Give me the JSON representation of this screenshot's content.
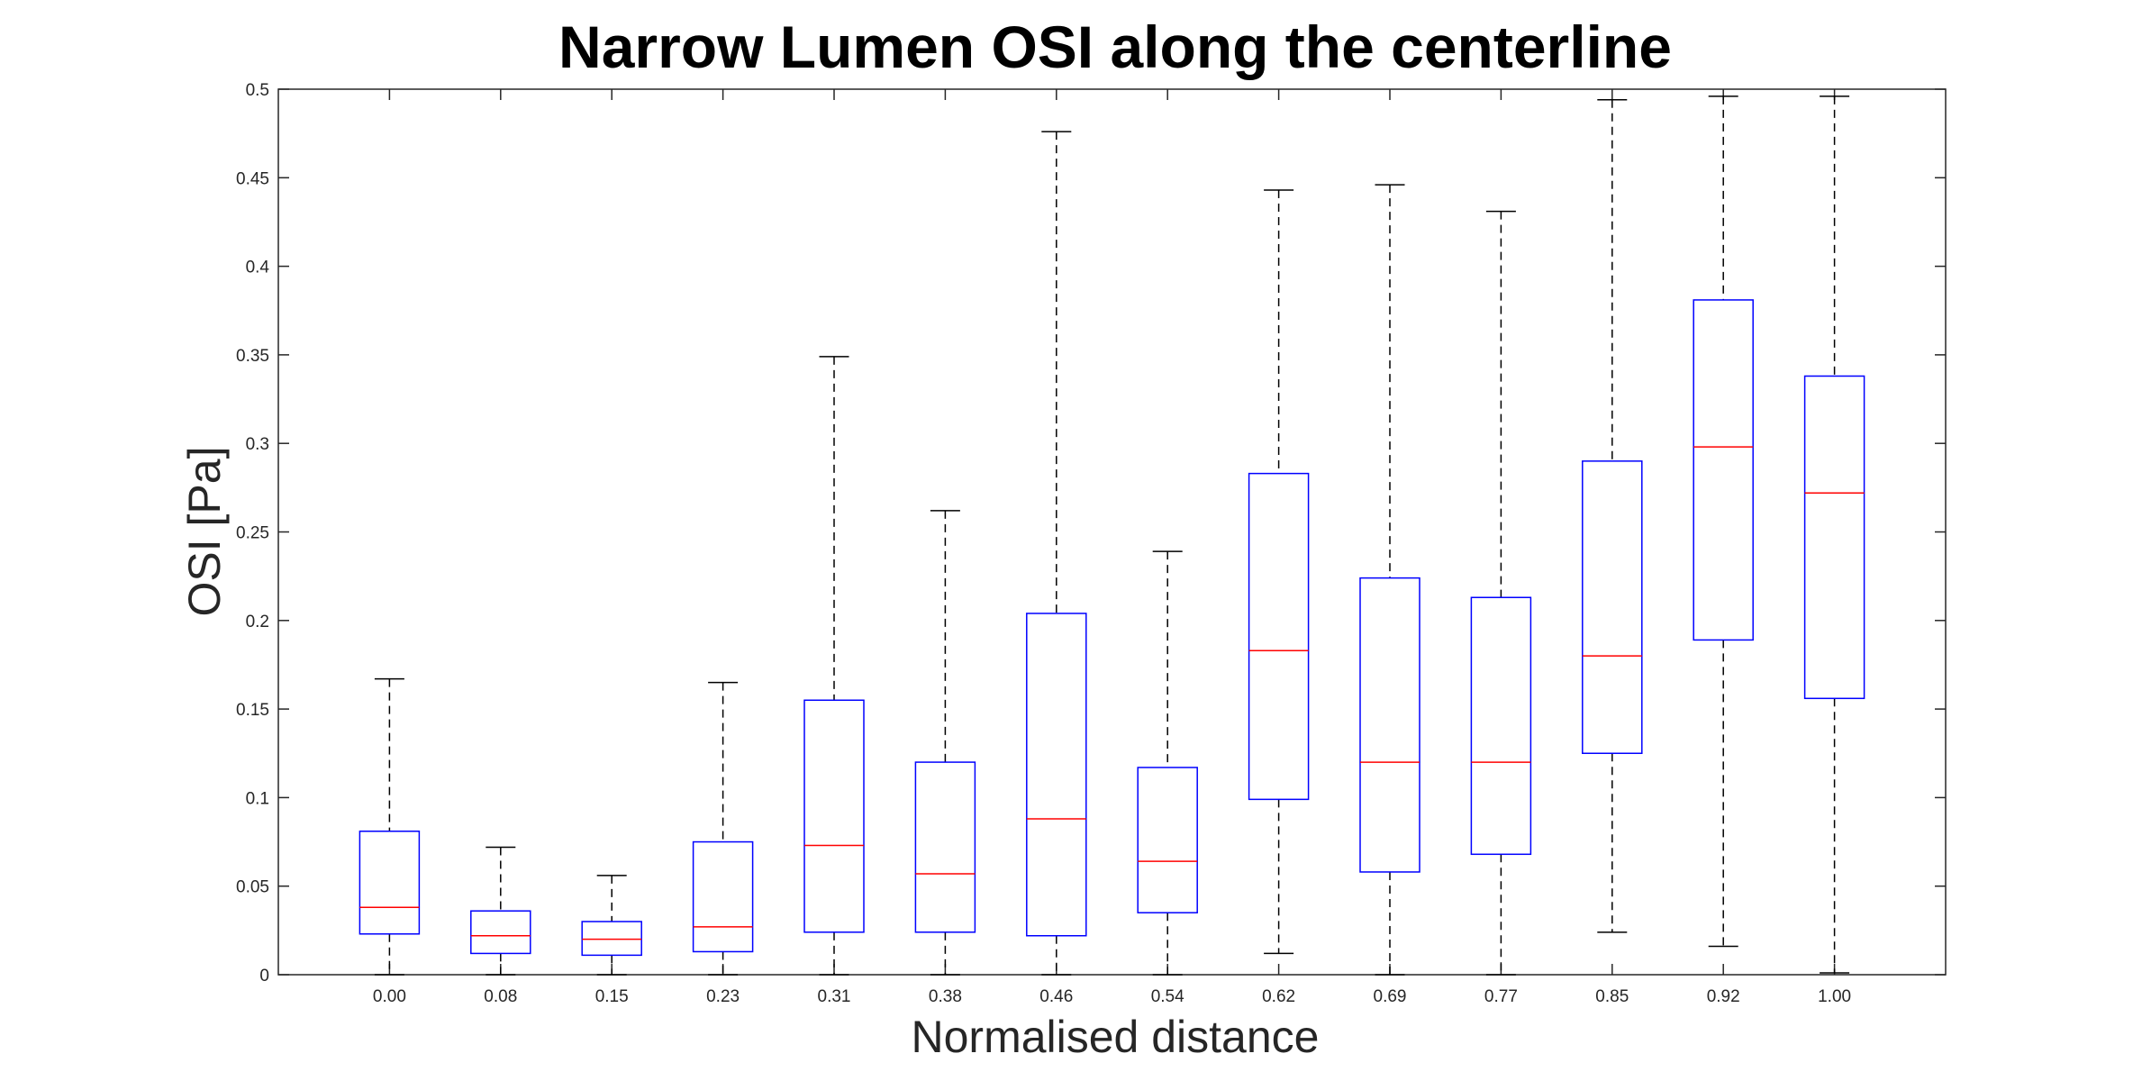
{
  "chart_data": {
    "type": "boxplot",
    "title": "Narrow Lumen OSI along the centerline",
    "xlabel": "Normalised distance",
    "ylabel": "OSI [Pa]",
    "ylim": [
      0,
      0.5
    ],
    "yticks": [
      "0",
      "0.05",
      "0.1",
      "0.15",
      "0.2",
      "0.25",
      "0.3",
      "0.35",
      "0.4",
      "0.45",
      "0.5"
    ],
    "categories": [
      "0.00",
      "0.08",
      "0.15",
      "0.23",
      "0.31",
      "0.38",
      "0.46",
      "0.54",
      "0.62",
      "0.69",
      "0.77",
      "0.85",
      "0.92",
      "1.00"
    ],
    "boxes": [
      {
        "whisker_low": 0.0,
        "q1": 0.023,
        "median": 0.038,
        "q3": 0.081,
        "whisker_high": 0.167
      },
      {
        "whisker_low": 0.0,
        "q1": 0.012,
        "median": 0.022,
        "q3": 0.036,
        "whisker_high": 0.072
      },
      {
        "whisker_low": 0.0,
        "q1": 0.011,
        "median": 0.02,
        "q3": 0.03,
        "whisker_high": 0.056
      },
      {
        "whisker_low": 0.0,
        "q1": 0.013,
        "median": 0.027,
        "q3": 0.075,
        "whisker_high": 0.165
      },
      {
        "whisker_low": 0.0,
        "q1": 0.024,
        "median": 0.073,
        "q3": 0.155,
        "whisker_high": 0.349
      },
      {
        "whisker_low": 0.0,
        "q1": 0.024,
        "median": 0.057,
        "q3": 0.12,
        "whisker_high": 0.262
      },
      {
        "whisker_low": 0.0,
        "q1": 0.022,
        "median": 0.088,
        "q3": 0.204,
        "whisker_high": 0.476
      },
      {
        "whisker_low": 0.0,
        "q1": 0.035,
        "median": 0.064,
        "q3": 0.117,
        "whisker_high": 0.239
      },
      {
        "whisker_low": 0.012,
        "q1": 0.099,
        "median": 0.183,
        "q3": 0.283,
        "whisker_high": 0.443
      },
      {
        "whisker_low": 0.0,
        "q1": 0.058,
        "median": 0.12,
        "q3": 0.224,
        "whisker_high": 0.446
      },
      {
        "whisker_low": 0.0,
        "q1": 0.068,
        "median": 0.12,
        "q3": 0.213,
        "whisker_high": 0.431
      },
      {
        "whisker_low": 0.024,
        "q1": 0.125,
        "median": 0.18,
        "q3": 0.29,
        "whisker_high": 0.494
      },
      {
        "whisker_low": 0.016,
        "q1": 0.189,
        "median": 0.298,
        "q3": 0.381,
        "whisker_high": 0.496
      },
      {
        "whisker_low": 0.001,
        "q1": 0.156,
        "median": 0.272,
        "q3": 0.338,
        "whisker_high": 0.496
      }
    ],
    "grid": false,
    "legend": "none",
    "colors": {
      "box": "#0000ff",
      "median": "#ff0000",
      "whisker": "#000000",
      "axis": "#262626"
    }
  }
}
